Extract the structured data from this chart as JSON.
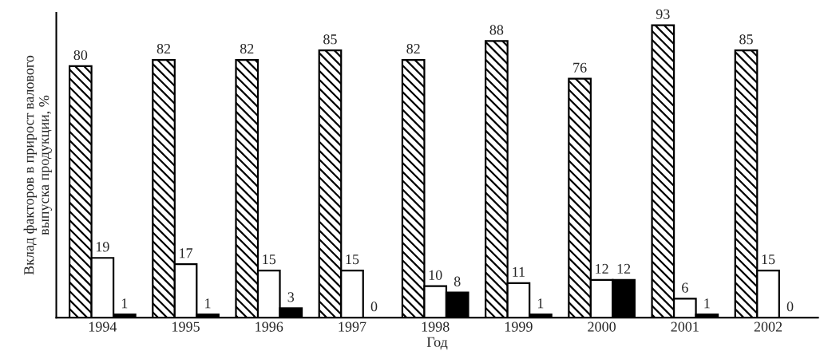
{
  "chart_data": {
    "type": "bar",
    "xlabel": "Год",
    "ylabel": "Вклад факторов в прирост валового\nвыпуска продукции, %",
    "categories": [
      "1994",
      "1995",
      "1996",
      "1997",
      "1998",
      "1999",
      "2000",
      "2001",
      "2002"
    ],
    "series": [
      {
        "color": "#000000",
        "values": [
          80,
          82,
          82,
          85,
          82,
          88,
          76,
          93,
          85
        ]
      },
      {
        "color": "#ffffff",
        "values": [
          19,
          17,
          15,
          15,
          10,
          11,
          12,
          6,
          15
        ]
      },
      {
        "color": "#000000",
        "values": [
          1,
          1,
          3,
          0,
          8,
          1,
          12,
          1,
          0
        ]
      }
    ],
    "ylim": [
      0,
      97
    ],
    "data_labels": true,
    "tick_labels": "x",
    "legend": false,
    "grid": false
  }
}
